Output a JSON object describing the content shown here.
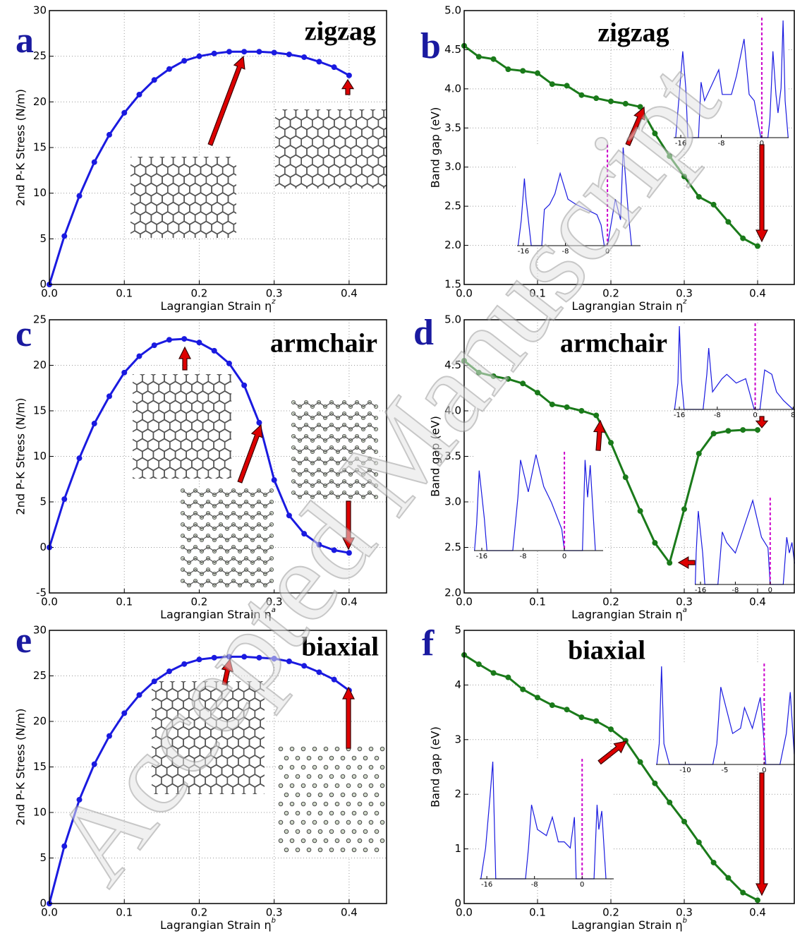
{
  "chart_data": [
    {
      "type": "line",
      "label": "a",
      "annotation": "zigzag",
      "xlabel": "Lagrangian Strain η",
      "xlabel_superscript": "z",
      "ylabel": "2nd P-K Stress (N/m)",
      "x": [
        0,
        0.02,
        0.04,
        0.06,
        0.08,
        0.1,
        0.12,
        0.14,
        0.16,
        0.18,
        0.2,
        0.22,
        0.24,
        0.26,
        0.28,
        0.3,
        0.32,
        0.34,
        0.36,
        0.38,
        0.4
      ],
      "values": [
        0,
        5.3,
        9.7,
        13.4,
        16.4,
        18.8,
        20.8,
        22.4,
        23.6,
        24.5,
        25.0,
        25.3,
        25.5,
        25.5,
        25.5,
        25.4,
        25.2,
        24.9,
        24.4,
        23.8,
        22.9
      ],
      "color": "#1a1ae0",
      "xlim": [
        0,
        0.45
      ],
      "ylim": [
        0,
        30
      ],
      "xticks": [
        {
          "value": 0,
          "label": "0.0"
        },
        0.1,
        0.2,
        0.3,
        0.4
      ],
      "yticks": [
        0,
        5,
        10,
        15,
        20,
        25,
        30
      ],
      "grid": true
    },
    {
      "type": "line",
      "label": "b",
      "annotation": "zigzag",
      "xlabel": "Lagrangian Strain η",
      "xlabel_superscript": "z",
      "ylabel": "Band gap (eV)",
      "x": [
        0,
        0.02,
        0.04,
        0.06,
        0.08,
        0.1,
        0.12,
        0.14,
        0.16,
        0.18,
        0.2,
        0.22,
        0.24,
        0.26,
        0.28,
        0.3,
        0.32,
        0.34,
        0.36,
        0.38,
        0.4
      ],
      "values": [
        4.55,
        4.41,
        4.38,
        4.25,
        4.23,
        4.2,
        4.06,
        4.04,
        3.92,
        3.88,
        3.84,
        3.81,
        3.77,
        3.43,
        3.14,
        2.88,
        2.62,
        2.52,
        2.3,
        2.09,
        1.99
      ],
      "color": "#1a7a1a",
      "xlim": [
        0,
        0.45
      ],
      "ylim": [
        1.5,
        5
      ],
      "xticks": [
        {
          "value": 0,
          "label": "0.0"
        },
        0.1,
        0.2,
        0.3,
        0.4
      ],
      "yticks": [
        1.5,
        {
          "value": 2,
          "label": "2.0"
        },
        2.5,
        {
          "value": 3,
          "label": "3.0"
        },
        3.5,
        {
          "value": 4,
          "label": "4.0"
        },
        4.5,
        {
          "value": 5,
          "label": "5.0"
        }
      ],
      "grid": true,
      "insets": [
        {
          "xlim": [
            -17.4,
            5.3
          ],
          "xticks": [
            -16,
            -8,
            0
          ],
          "fermi": 0,
          "x": [
            -17,
            -16.4,
            -15.6,
            -15,
            -14.6,
            -12.5,
            -12,
            -11.3,
            -8.5,
            -7.8,
            -6,
            -5,
            -3.5,
            -2.5,
            -1.5,
            -0.2,
            1.2,
            1.6,
            2.2,
            2.8,
            3.2,
            3.8,
            4.2,
            4.6,
            5.2
          ],
          "values": [
            0,
            0.3,
            0.7,
            0.4,
            0,
            0,
            0.45,
            0.3,
            0.55,
            0.35,
            0.35,
            0.5,
            0.8,
            0.35,
            0.3,
            0,
            0,
            0.15,
            0.7,
            0.35,
            0.2,
            0.4,
            0.95,
            0.3,
            0
          ]
        },
        {
          "xlim": [
            -17.2,
            6.3
          ],
          "xticks": [
            -16,
            -8,
            0
          ],
          "fermi": 0,
          "x": [
            -17,
            -16.4,
            -15.8,
            -15.5,
            -14.5,
            -12.5,
            -12,
            -11,
            -10,
            -9,
            -7.5,
            -6,
            -4,
            -2,
            -1.2,
            -0.6,
            0,
            1,
            1.5,
            2.5,
            3,
            4,
            4.6
          ],
          "values": [
            0,
            0.25,
            0.65,
            0.45,
            0,
            0,
            0.35,
            0.4,
            0.5,
            0.7,
            0.45,
            0.4,
            0.35,
            0.3,
            0.2,
            0,
            0,
            0.3,
            0.45,
            0.25,
            0.95,
            0.3,
            0
          ]
        }
      ]
    },
    {
      "type": "line",
      "label": "c",
      "annotation": "armchair",
      "xlabel": "Lagrangian Strain η",
      "xlabel_superscript": "a",
      "ylabel": "2nd P-K Stress (N/m)",
      "x": [
        0,
        0.02,
        0.04,
        0.06,
        0.08,
        0.1,
        0.12,
        0.14,
        0.16,
        0.18,
        0.2,
        0.22,
        0.24,
        0.26,
        0.28,
        0.3,
        0.32,
        0.34,
        0.36,
        0.38,
        0.4
      ],
      "values": [
        0,
        5.3,
        9.8,
        13.6,
        16.6,
        19.2,
        21.0,
        22.2,
        22.8,
        22.9,
        22.5,
        21.6,
        20.2,
        17.8,
        13.7,
        7.4,
        3.5,
        1.5,
        0.3,
        -0.3,
        -0.6
      ],
      "color": "#1a1ae0",
      "xlim": [
        0,
        0.45
      ],
      "ylim": [
        -5,
        25
      ],
      "xticks": [
        {
          "value": 0,
          "label": "0.0"
        },
        0.1,
        0.2,
        0.3,
        0.4
      ],
      "yticks": [
        -5,
        0,
        5,
        10,
        15,
        20,
        25
      ],
      "grid": true
    },
    {
      "type": "line",
      "label": "d",
      "annotation": "armchair",
      "xlabel": "Lagrangian Strain η",
      "xlabel_superscript": "a",
      "ylabel": "Band gap (eV)",
      "x": [
        0,
        0.02,
        0.04,
        0.06,
        0.08,
        0.1,
        0.12,
        0.14,
        0.16,
        0.18,
        0.2,
        0.22,
        0.24,
        0.26,
        0.28,
        0.3,
        0.32,
        0.34,
        0.36,
        0.38,
        0.4
      ],
      "values": [
        4.55,
        4.42,
        4.38,
        4.35,
        4.3,
        4.2,
        4.07,
        4.04,
        4.0,
        3.95,
        3.65,
        3.27,
        2.9,
        2.55,
        2.33,
        2.92,
        3.53,
        3.75,
        3.78,
        3.79,
        3.79
      ],
      "color": "#1a7a1a",
      "xlim": [
        0,
        0.45
      ],
      "ylim": [
        2,
        5
      ],
      "xticks": [
        {
          "value": 0,
          "label": "0.0"
        },
        0.1,
        0.2,
        0.3,
        0.4
      ],
      "yticks": [
        {
          "value": 2,
          "label": "2.0"
        },
        2.5,
        {
          "value": 3,
          "label": "3.0"
        },
        3.5,
        {
          "value": 4,
          "label": "4.0"
        },
        4.5,
        {
          "value": 5,
          "label": "5.0"
        }
      ],
      "grid": true,
      "insets": [
        {
          "xlim": [
            -17.2,
            8.4
          ],
          "xticks": [
            -16,
            -8,
            0,
            8
          ],
          "fermi": 0,
          "x": [
            -17,
            -16.3,
            -16,
            -15.6,
            -15,
            -11,
            -10.2,
            -9.8,
            -9,
            -7,
            -6,
            -4,
            -2,
            -0.2,
            0.5,
            1,
            2,
            3.5,
            4.5,
            6,
            8
          ],
          "values": [
            0,
            0.3,
            0.95,
            0.35,
            0,
            0,
            0.4,
            0.7,
            0.2,
            0.35,
            0.4,
            0.3,
            0.35,
            0,
            0,
            0,
            0.45,
            0.4,
            0.2,
            0.1,
            0
          ]
        },
        {
          "xlim": [
            -17.5,
            7.5
          ],
          "xticks": [
            -16,
            -8,
            0
          ],
          "fermi": 0,
          "x": [
            -17.4,
            -17,
            -16.5,
            -15.5,
            -15,
            -10,
            -9,
            -8.5,
            -7,
            -5.5,
            -4,
            -2.5,
            -0.5,
            0,
            3.5,
            4,
            4.5,
            5,
            6
          ],
          "values": [
            0,
            0.25,
            0.75,
            0.3,
            0,
            0,
            0.5,
            0.85,
            0.55,
            0.9,
            0.6,
            0.45,
            0.2,
            0,
            0,
            0.85,
            0.5,
            0.8,
            0
          ]
        },
        {
          "xlim": [
            -17.3,
            5.7
          ],
          "xticks": [
            -16,
            -8,
            0
          ],
          "fermi": 0,
          "x": [
            -17.2,
            -17,
            -16.5,
            -15.5,
            -15,
            -12,
            -11,
            -10,
            -8,
            -6,
            -4,
            -2,
            -0.5,
            0,
            3,
            3.8,
            4.4,
            5,
            5.6
          ],
          "values": [
            0,
            0.3,
            0.7,
            0.3,
            0,
            0,
            0.5,
            0.4,
            0.3,
            0.55,
            0.8,
            0.45,
            0.35,
            0,
            0,
            0.45,
            0.3,
            0.4,
            0.2
          ]
        }
      ]
    },
    {
      "type": "line",
      "label": "e",
      "annotation": "biaxial",
      "xlabel": "Lagrangian Strain η",
      "xlabel_superscript": "b",
      "ylabel": "2nd P-K Stress (N/m)",
      "x": [
        0,
        0.02,
        0.04,
        0.06,
        0.08,
        0.1,
        0.12,
        0.14,
        0.16,
        0.18,
        0.2,
        0.22,
        0.24,
        0.26,
        0.28,
        0.3,
        0.32,
        0.34,
        0.36,
        0.38,
        0.4
      ],
      "values": [
        0,
        6.3,
        11.4,
        15.3,
        18.4,
        20.9,
        22.9,
        24.4,
        25.5,
        26.3,
        26.8,
        27.0,
        27.1,
        27.1,
        27.0,
        26.9,
        26.6,
        26.1,
        25.4,
        24.6,
        23.4
      ],
      "color": "#1a1ae0",
      "xlim": [
        0,
        0.45
      ],
      "ylim": [
        0,
        30
      ],
      "xticks": [
        {
          "value": 0,
          "label": "0.0"
        },
        0.1,
        0.2,
        0.3,
        0.4
      ],
      "yticks": [
        0,
        5,
        10,
        15,
        20,
        25,
        30
      ],
      "grid": true
    },
    {
      "type": "line",
      "label": "f",
      "annotation": "biaxial",
      "xlabel": "Lagrangian Strain η",
      "xlabel_superscript": "b",
      "ylabel": "Band gap (eV)",
      "x": [
        0,
        0.02,
        0.04,
        0.06,
        0.08,
        0.1,
        0.12,
        0.14,
        0.16,
        0.18,
        0.2,
        0.22,
        0.24,
        0.26,
        0.28,
        0.3,
        0.32,
        0.34,
        0.36,
        0.38,
        0.4
      ],
      "values": [
        4.55,
        4.38,
        4.22,
        4.14,
        3.92,
        3.77,
        3.63,
        3.55,
        3.41,
        3.34,
        3.19,
        2.98,
        2.59,
        2.2,
        1.85,
        1.5,
        1.12,
        0.75,
        0.47,
        0.2,
        0.06
      ],
      "color": "#1a7a1a",
      "xlim": [
        0,
        0.45
      ],
      "ylim": [
        0,
        5
      ],
      "xticks": [
        {
          "value": 0,
          "label": "0.0"
        },
        0.1,
        0.2,
        0.3,
        0.4
      ],
      "yticks": [
        0,
        1,
        2,
        3,
        4,
        5
      ],
      "grid": true,
      "insets": [
        {
          "xlim": [
            -13.7,
            3.9
          ],
          "xticks": [
            -10,
            -5,
            0
          ],
          "fermi": 0,
          "x": [
            -13.6,
            -13.3,
            -13,
            -12.7,
            -12,
            -6.5,
            -6,
            -5.5,
            -4,
            -3,
            -2.5,
            -1.5,
            -0.5,
            -0.1,
            0.2,
            2,
            2.8,
            3.3,
            3.8
          ],
          "values": [
            0,
            0.2,
            0.95,
            0.2,
            0,
            0,
            0.2,
            0.75,
            0.3,
            0.35,
            0.55,
            0.35,
            0.65,
            0.3,
            0,
            0,
            0.3,
            0.7,
            0.1
          ]
        },
        {
          "xlim": [
            -17.2,
            5.3
          ],
          "xticks": [
            -16,
            -8,
            0
          ],
          "fermi": 0,
          "x": [
            -17,
            -16.2,
            -15.5,
            -15,
            -14.5,
            -9.5,
            -9,
            -8.5,
            -7.5,
            -6,
            -5,
            -4,
            -3,
            -2,
            -1.3,
            -1,
            2,
            2.5,
            2.8,
            3.3,
            4
          ],
          "values": [
            0,
            0.25,
            0.65,
            0.95,
            0,
            0,
            0.25,
            0.6,
            0.4,
            0.35,
            0.5,
            0.3,
            0.3,
            0.25,
            0.5,
            0,
            0,
            0.6,
            0.4,
            0.55,
            0
          ]
        }
      ]
    }
  ],
  "watermark": "Accepted Manuscript"
}
